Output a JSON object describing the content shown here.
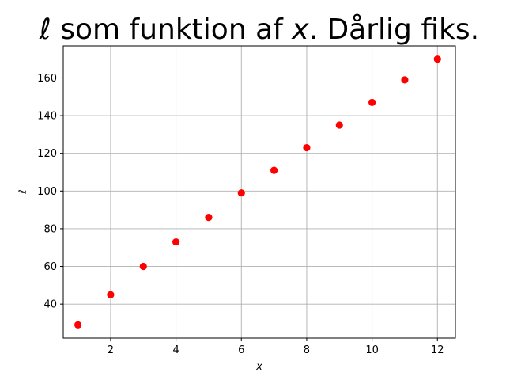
{
  "chart_data": {
    "type": "scatter",
    "title_prefix": "ℓ",
    "title_middle": " som funktion af ",
    "title_var": "x",
    "title_suffix": ". Dårlig fiks.",
    "xlabel": "x",
    "ylabel": "ℓ",
    "xlim": [
      0.55,
      12.55
    ],
    "ylim": [
      22,
      177
    ],
    "x_ticks": [
      2,
      4,
      6,
      8,
      10,
      12
    ],
    "y_ticks": [
      40,
      60,
      80,
      100,
      120,
      140,
      160
    ],
    "grid": true,
    "marker_color": "#ff0000",
    "grid_color": "#b0b0b0",
    "series": [
      {
        "x": [
          1,
          2,
          3,
          4,
          5,
          6,
          7,
          8,
          9,
          10,
          11,
          12
        ],
        "y": [
          29,
          45,
          60,
          73,
          86,
          99,
          111,
          123,
          135,
          147,
          159,
          170
        ]
      }
    ]
  }
}
